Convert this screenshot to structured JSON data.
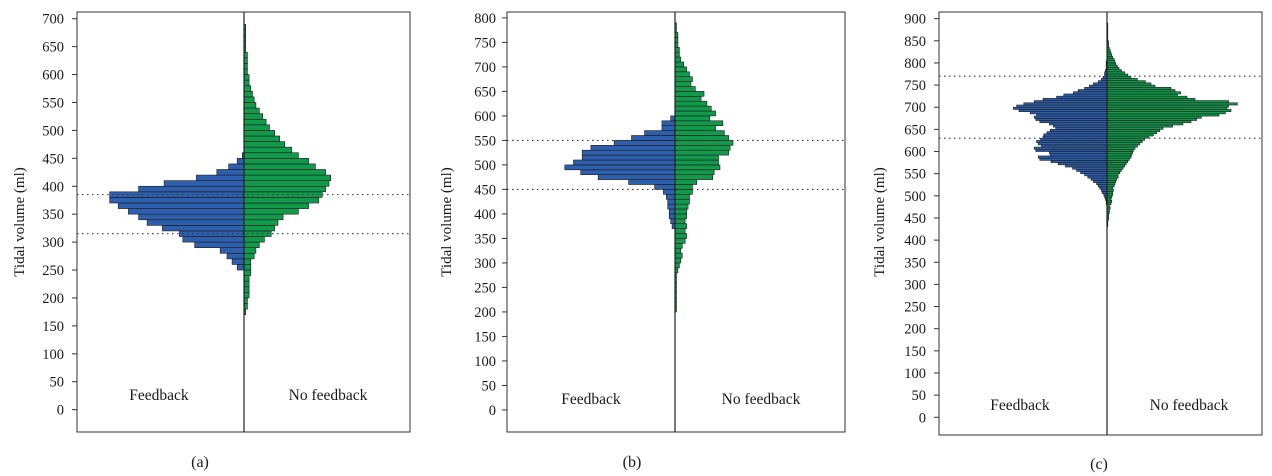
{
  "colors": {
    "feedback": "#2e5fad",
    "no_feedback": "#129a4c",
    "frame": "#333333"
  },
  "chart_data": [
    {
      "type": "bar",
      "orientation": "horizontal-back-to-back",
      "panel_label": "(a)",
      "ylabel": "Tidal volume (ml)",
      "ylim": [
        -40,
        712
      ],
      "yticks": [
        0,
        50,
        100,
        150,
        200,
        250,
        300,
        350,
        400,
        450,
        500,
        550,
        600,
        650,
        700
      ],
      "bin_width": 10,
      "reference_lines": [
        315,
        385
      ],
      "group_labels": [
        "Feedback",
        "No feedback"
      ],
      "series": [
        {
          "name": "Feedback",
          "side": "left",
          "color": "#2e5fad",
          "bins": [
            250,
            260,
            270,
            280,
            290,
            300,
            310,
            320,
            330,
            340,
            350,
            360,
            370,
            380,
            390,
            400,
            410,
            420,
            430,
            440,
            450
          ],
          "counts": [
            4,
            7,
            10,
            14,
            29,
            36,
            38,
            48,
            57,
            62,
            68,
            74,
            79,
            79,
            62,
            47,
            28,
            16,
            9,
            4,
            1
          ]
        },
        {
          "name": "No feedback",
          "side": "right",
          "color": "#129a4c",
          "bins": [
            170,
            180,
            190,
            200,
            210,
            220,
            230,
            240,
            250,
            260,
            270,
            280,
            290,
            300,
            310,
            320,
            330,
            340,
            350,
            360,
            370,
            380,
            390,
            400,
            410,
            420,
            430,
            440,
            450,
            460,
            470,
            480,
            490,
            500,
            510,
            520,
            530,
            540,
            550,
            560,
            570,
            580,
            590,
            600,
            610,
            620,
            630,
            640,
            650,
            660,
            670,
            680
          ],
          "counts": [
            1,
            2,
            2,
            3,
            3,
            3,
            3,
            4,
            4,
            4,
            6,
            7,
            9,
            12,
            16,
            18,
            20,
            23,
            32,
            38,
            44,
            46,
            48,
            50,
            51,
            48,
            42,
            38,
            32,
            28,
            24,
            21,
            18,
            15,
            13,
            11,
            9,
            7,
            6,
            5,
            4,
            3,
            3,
            2,
            2,
            2,
            2,
            1,
            1,
            1,
            1,
            1
          ]
        }
      ]
    },
    {
      "type": "bar",
      "orientation": "horizontal-back-to-back",
      "panel_label": "(b)",
      "ylabel": "Tidal volume (ml)",
      "ylim": [
        -45,
        812
      ],
      "yticks": [
        0,
        50,
        100,
        150,
        200,
        250,
        300,
        350,
        400,
        450,
        500,
        550,
        600,
        650,
        700,
        750,
        800
      ],
      "bin_width": 10,
      "reference_lines": [
        450,
        550
      ],
      "group_labels": [
        "Feedback",
        "No feedback"
      ],
      "series": [
        {
          "name": "Feedback",
          "side": "left",
          "color": "#2e5fad",
          "bins": [
            370,
            380,
            390,
            400,
            410,
            420,
            430,
            440,
            450,
            460,
            470,
            480,
            490,
            500,
            510,
            520,
            530,
            540,
            550,
            560,
            570,
            580,
            590
          ],
          "counts": [
            2,
            3,
            4,
            4,
            5,
            5,
            6,
            8,
            14,
            32,
            53,
            65,
            76,
            70,
            64,
            64,
            58,
            42,
            30,
            21,
            9,
            9,
            3
          ]
        },
        {
          "name": "No feedback",
          "side": "right",
          "color": "#129a4c",
          "bins": [
            200,
            210,
            220,
            230,
            240,
            250,
            260,
            270,
            280,
            290,
            300,
            310,
            320,
            330,
            340,
            350,
            360,
            370,
            380,
            390,
            400,
            410,
            420,
            430,
            440,
            450,
            460,
            470,
            480,
            490,
            500,
            510,
            520,
            530,
            540,
            550,
            560,
            570,
            580,
            590,
            600,
            610,
            620,
            630,
            640,
            650,
            660,
            670,
            680,
            690,
            700,
            710,
            720,
            730,
            740,
            750,
            760,
            770,
            780
          ],
          "counts": [
            1,
            1,
            1,
            1,
            1,
            1,
            1,
            1,
            2,
            3,
            4,
            5,
            4,
            5,
            7,
            8,
            7,
            8,
            7,
            8,
            8,
            9,
            10,
            10,
            12,
            12,
            15,
            26,
            27,
            31,
            30,
            30,
            37,
            38,
            40,
            37,
            34,
            28,
            33,
            24,
            28,
            25,
            22,
            18,
            20,
            14,
            11,
            12,
            10,
            8,
            6,
            4,
            3,
            3,
            2,
            2,
            2,
            1,
            1
          ]
        }
      ]
    },
    {
      "type": "bar",
      "orientation": "horizontal-back-to-back",
      "panel_label": "(c)",
      "ylabel": "Tidal volume (ml)",
      "ylim": [
        -40,
        915
      ],
      "yticks": [
        0,
        50,
        100,
        150,
        200,
        250,
        300,
        350,
        400,
        450,
        500,
        550,
        600,
        650,
        700,
        750,
        800,
        850,
        900
      ],
      "bin_width": 5,
      "reference_lines": [
        630,
        770
      ],
      "group_labels": [
        "Feedback",
        "No feedback"
      ],
      "series": [
        {
          "name": "Feedback",
          "side": "left",
          "color": "#2e5fad",
          "bins": [
            480,
            485,
            490,
            495,
            500,
            505,
            510,
            515,
            520,
            525,
            530,
            535,
            540,
            545,
            550,
            555,
            560,
            565,
            570,
            575,
            580,
            585,
            590,
            595,
            600,
            605,
            610,
            615,
            620,
            625,
            630,
            635,
            640,
            645,
            650,
            655,
            660,
            665,
            670,
            675,
            680,
            685,
            690,
            695,
            700,
            705,
            710,
            715,
            720,
            725,
            730,
            735,
            740,
            745,
            750,
            755,
            760,
            765,
            770,
            775,
            780,
            785,
            790,
            795,
            800
          ],
          "counts": [
            1,
            1,
            2,
            3,
            4,
            6,
            7,
            9,
            11,
            13,
            17,
            20,
            24,
            28,
            33,
            38,
            43,
            52,
            61,
            70,
            84,
            86,
            71,
            72,
            89,
            91,
            82,
            86,
            88,
            83,
            80,
            79,
            75,
            71,
            64,
            67,
            72,
            84,
            89,
            91,
            88,
            96,
            110,
            117,
            113,
            104,
            91,
            80,
            63,
            54,
            42,
            36,
            28,
            22,
            17,
            11,
            7,
            5,
            3,
            3,
            2,
            1,
            1,
            1,
            1
          ]
        },
        {
          "name": "No feedback",
          "side": "right",
          "color": "#129a4c",
          "bins": [
            430,
            435,
            440,
            445,
            450,
            455,
            460,
            465,
            470,
            475,
            480,
            485,
            490,
            495,
            500,
            505,
            510,
            515,
            520,
            525,
            530,
            535,
            540,
            545,
            550,
            555,
            560,
            565,
            570,
            575,
            580,
            585,
            590,
            595,
            600,
            605,
            610,
            615,
            620,
            625,
            630,
            635,
            640,
            645,
            650,
            655,
            660,
            665,
            670,
            675,
            680,
            685,
            690,
            695,
            700,
            705,
            710,
            715,
            720,
            725,
            730,
            735,
            740,
            745,
            750,
            755,
            760,
            765,
            770,
            775,
            780,
            785,
            790,
            795,
            800,
            805,
            810,
            815,
            820,
            825,
            830,
            835,
            840,
            845,
            850,
            855,
            860,
            865,
            870,
            875,
            880,
            885
          ],
          "counts": [
            1,
            1,
            1,
            2,
            2,
            2,
            3,
            3,
            4,
            3,
            5,
            6,
            5,
            6,
            7,
            7,
            8,
            7,
            9,
            10,
            11,
            12,
            14,
            14,
            16,
            18,
            20,
            22,
            24,
            26,
            28,
            30,
            31,
            32,
            33,
            35,
            38,
            41,
            44,
            47,
            52,
            58,
            62,
            66,
            70,
            82,
            95,
            105,
            112,
            118,
            140,
            148,
            155,
            150,
            152,
            163,
            152,
            110,
            100,
            88,
            92,
            85,
            80,
            60,
            55,
            48,
            38,
            30,
            26,
            22,
            18,
            15,
            13,
            11,
            10,
            9,
            7,
            6,
            5,
            4,
            3,
            2,
            2,
            2,
            1,
            1,
            1,
            1,
            1,
            1,
            1,
            1
          ]
        }
      ]
    }
  ]
}
